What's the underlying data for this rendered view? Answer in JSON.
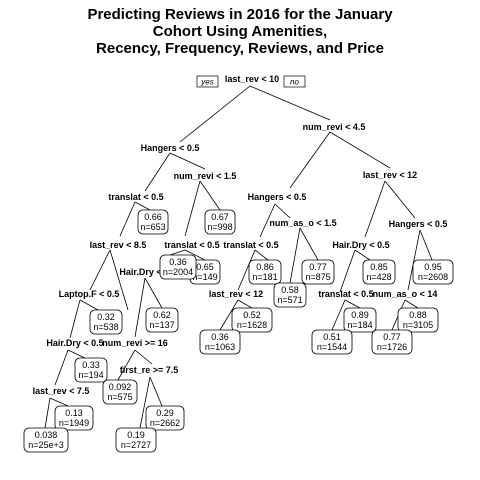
{
  "title": {
    "line1": "Predicting Reviews in 2016 for the January",
    "line2": "Cohort Using Amenities,",
    "line3": "Recency, Frequency, Reviews, and Price"
  },
  "root": {
    "yes_label": "yes",
    "no_label": "no"
  },
  "splits": [
    {
      "id": "s1",
      "label": "last_rev < 10"
    },
    {
      "id": "s2",
      "label": "Hangers < 0.5"
    },
    {
      "id": "s3",
      "label": "num_revi < 4.5"
    },
    {
      "id": "s4",
      "label": "num_revi < 1.5"
    },
    {
      "id": "s5",
      "label": "translat < 0.5"
    },
    {
      "id": "s6",
      "label": "translat < 0.5"
    },
    {
      "id": "s7",
      "label": "last_rev < 8.5"
    },
    {
      "id": "s8",
      "label": "Hair.Dry < 0.5"
    },
    {
      "id": "s9",
      "label": "Laptop.F < 0.5"
    },
    {
      "id": "s10",
      "label": "Hair.Dry < 0.5"
    },
    {
      "id": "s11",
      "label": "num_revi >= 16"
    },
    {
      "id": "s12",
      "label": "last_rev < 7.5"
    },
    {
      "id": "s13",
      "label": "first_re >= 7.5"
    },
    {
      "id": "s14",
      "label": "Hangers < 0.5"
    },
    {
      "id": "s15",
      "label": "last_rev < 12"
    },
    {
      "id": "s16",
      "label": "translat < 0.5"
    },
    {
      "id": "s17",
      "label": "num_as_o < 1.5"
    },
    {
      "id": "s18",
      "label": "last_rev < 12"
    },
    {
      "id": "s19",
      "label": "Hair.Dry < 0.5"
    },
    {
      "id": "s20",
      "label": "Hangers < 0.5"
    },
    {
      "id": "s21",
      "label": "translat < 0.5"
    },
    {
      "id": "s22",
      "label": "num_as_o < 14"
    }
  ],
  "leaves": [
    {
      "id": "l1",
      "value": "0.66",
      "n": "n=653"
    },
    {
      "id": "l2",
      "value": "0.67",
      "n": "n=998"
    },
    {
      "id": "l3",
      "value": "0.65",
      "n": "n=149"
    },
    {
      "id": "l4",
      "value": "0.36",
      "n": "n=2004"
    },
    {
      "id": "l5",
      "value": "0.62",
      "n": "n=137"
    },
    {
      "id": "l6",
      "value": "0.32",
      "n": "n=538"
    },
    {
      "id": "l7",
      "value": "0.33",
      "n": "n=194"
    },
    {
      "id": "l8",
      "value": "0.092",
      "n": "n=575"
    },
    {
      "id": "l9",
      "value": "0.13",
      "n": "n=1949"
    },
    {
      "id": "l10",
      "value": "0.29",
      "n": "n=2662"
    },
    {
      "id": "l11",
      "value": "0.038",
      "n": "n=25e+3"
    },
    {
      "id": "l12",
      "value": "0.19",
      "n": "n=2727"
    },
    {
      "id": "l13",
      "value": "0.86",
      "n": "n=181"
    },
    {
      "id": "l14",
      "value": "0.77",
      "n": "n=875"
    },
    {
      "id": "l15",
      "value": "0.58",
      "n": "n=571"
    },
    {
      "id": "l16",
      "value": "0.52",
      "n": "n=1628"
    },
    {
      "id": "l17",
      "value": "0.36",
      "n": "n=1063"
    },
    {
      "id": "l18",
      "value": "0.85",
      "n": "n=428"
    },
    {
      "id": "l19",
      "value": "0.95",
      "n": "n=2608"
    },
    {
      "id": "l20",
      "value": "0.89",
      "n": "n=184"
    },
    {
      "id": "l21",
      "value": "0.88",
      "n": "n=3105"
    },
    {
      "id": "l22",
      "value": "0.51",
      "n": "n=1544"
    },
    {
      "id": "l23",
      "value": "0.77",
      "n": "n=1726"
    }
  ]
}
